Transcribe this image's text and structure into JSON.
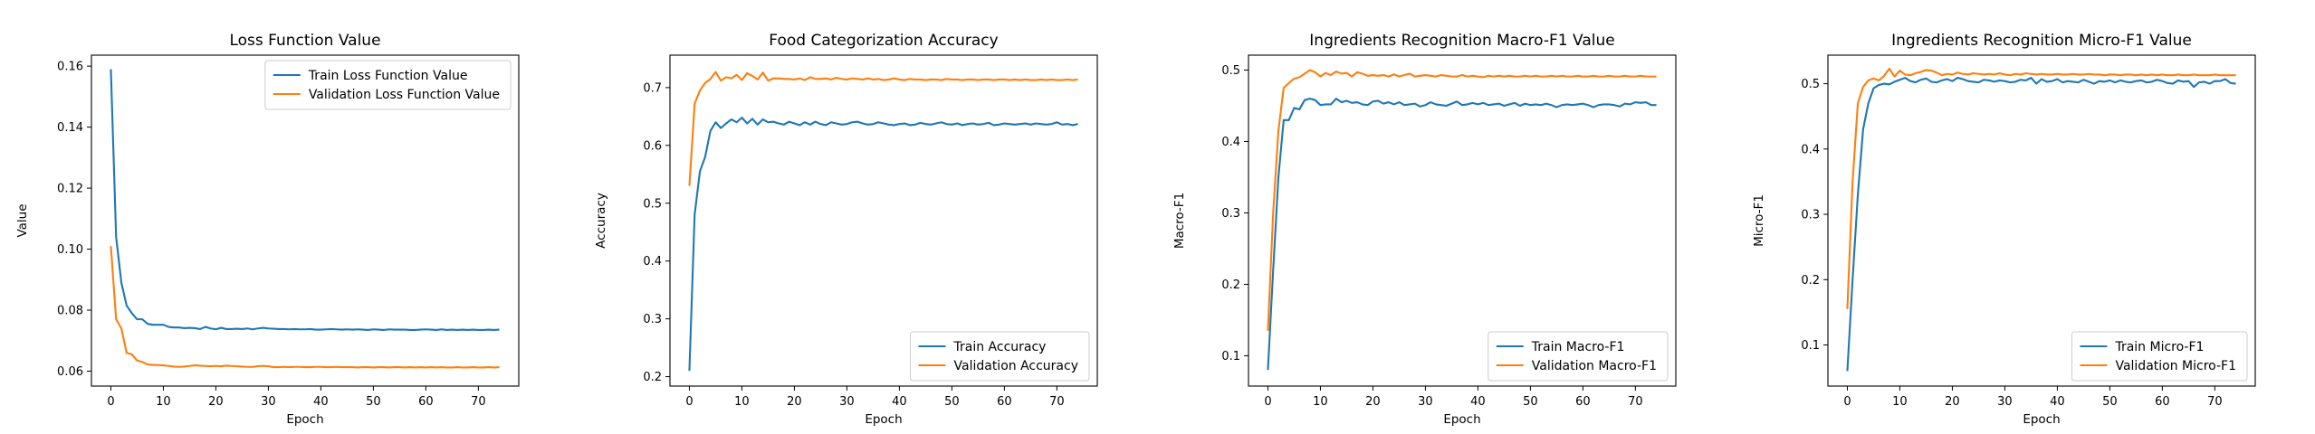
{
  "chart_data": [
    {
      "type": "line",
      "title": "Loss Function Value",
      "xlabel": "Epoch",
      "ylabel": "Value",
      "xlim": [
        -3.7,
        77.7
      ],
      "ylim": [
        0.0551,
        0.1636
      ],
      "xticks": [
        0,
        10,
        20,
        30,
        40,
        50,
        60,
        70
      ],
      "yticks": [
        0.06,
        0.08,
        0.1,
        0.12,
        0.14,
        0.16
      ],
      "ytick_labels": [
        "0.06",
        "0.08",
        "0.10",
        "0.12",
        "0.14",
        "0.16"
      ],
      "legend_loc": "upper right",
      "x": [
        0,
        1,
        2,
        3,
        4,
        5,
        6,
        7,
        8,
        9,
        10,
        11,
        12,
        13,
        14,
        15,
        16,
        17,
        18,
        19,
        20,
        21,
        22,
        23,
        24,
        25,
        26,
        27,
        28,
        29,
        30,
        31,
        32,
        33,
        34,
        35,
        36,
        37,
        38,
        39,
        40,
        41,
        42,
        43,
        44,
        45,
        46,
        47,
        48,
        49,
        50,
        51,
        52,
        53,
        54,
        55,
        56,
        57,
        58,
        59,
        60,
        61,
        62,
        63,
        64,
        65,
        66,
        67,
        68,
        69,
        70,
        71,
        72,
        73,
        74
      ],
      "series": [
        {
          "name": "Train Loss Function Value",
          "color": "#1f77b4",
          "values": [
            0.159,
            0.104,
            0.089,
            0.0815,
            0.079,
            0.077,
            0.077,
            0.0755,
            0.0752,
            0.0752,
            0.0752,
            0.0745,
            0.0743,
            0.0743,
            0.0741,
            0.0742,
            0.0741,
            0.0738,
            0.0745,
            0.074,
            0.0737,
            0.0742,
            0.0738,
            0.0738,
            0.0739,
            0.0738,
            0.074,
            0.0737,
            0.074,
            0.0742,
            0.074,
            0.0739,
            0.0738,
            0.0738,
            0.0737,
            0.0738,
            0.0737,
            0.0737,
            0.0738,
            0.0736,
            0.0736,
            0.0737,
            0.0738,
            0.0737,
            0.0736,
            0.0737,
            0.0736,
            0.0737,
            0.0736,
            0.0735,
            0.0737,
            0.0736,
            0.0735,
            0.0737,
            0.0736,
            0.0736,
            0.0736,
            0.0735,
            0.0735,
            0.0736,
            0.0737,
            0.0736,
            0.0735,
            0.0737,
            0.0735,
            0.0736,
            0.0735,
            0.0736,
            0.0735,
            0.0736,
            0.0735,
            0.0735,
            0.0736,
            0.0735,
            0.0736
          ]
        },
        {
          "name": "Validation Loss Function Value",
          "color": "#ff7f0e",
          "values": [
            0.101,
            0.077,
            0.074,
            0.066,
            0.0655,
            0.0635,
            0.063,
            0.0622,
            0.062,
            0.062,
            0.0619,
            0.0617,
            0.0615,
            0.0614,
            0.0615,
            0.0617,
            0.0619,
            0.0618,
            0.0617,
            0.0616,
            0.0617,
            0.0616,
            0.0618,
            0.0617,
            0.0616,
            0.0615,
            0.0614,
            0.0614,
            0.0616,
            0.0617,
            0.0616,
            0.0613,
            0.0613,
            0.0614,
            0.0613,
            0.0614,
            0.0614,
            0.0613,
            0.0613,
            0.0614,
            0.0614,
            0.0613,
            0.0613,
            0.0614,
            0.0613,
            0.0613,
            0.0613,
            0.0612,
            0.0613,
            0.0613,
            0.0612,
            0.0613,
            0.0613,
            0.0612,
            0.0613,
            0.0613,
            0.0612,
            0.0613,
            0.0612,
            0.0613,
            0.0612,
            0.0613,
            0.0612,
            0.0613,
            0.0612,
            0.0612,
            0.0613,
            0.0612,
            0.0612,
            0.0613,
            0.0612,
            0.0612,
            0.0613,
            0.0612,
            0.0613
          ]
        }
      ]
    },
    {
      "type": "line",
      "title": "Food Categorization Accuracy",
      "xlabel": "Epoch",
      "ylabel": "Accuracy",
      "xlim": [
        -3.7,
        77.7
      ],
      "ylim": [
        0.1837,
        0.7561
      ],
      "xticks": [
        0,
        10,
        20,
        30,
        40,
        50,
        60,
        70
      ],
      "yticks": [
        0.2,
        0.3,
        0.4,
        0.5,
        0.6,
        0.7
      ],
      "ytick_labels": [
        "0.2",
        "0.3",
        "0.4",
        "0.5",
        "0.6",
        "0.7"
      ],
      "legend_loc": "lower right",
      "x": [
        0,
        1,
        2,
        3,
        4,
        5,
        6,
        7,
        8,
        9,
        10,
        11,
        12,
        13,
        14,
        15,
        16,
        17,
        18,
        19,
        20,
        21,
        22,
        23,
        24,
        25,
        26,
        27,
        28,
        29,
        30,
        31,
        32,
        33,
        34,
        35,
        36,
        37,
        38,
        39,
        40,
        41,
        42,
        43,
        44,
        45,
        46,
        47,
        48,
        49,
        50,
        51,
        52,
        53,
        54,
        55,
        56,
        57,
        58,
        59,
        60,
        61,
        62,
        63,
        64,
        65,
        66,
        67,
        68,
        69,
        70,
        71,
        72,
        73,
        74
      ],
      "series": [
        {
          "name": "Train Accuracy",
          "color": "#1f77b4",
          "values": [
            0.21,
            0.48,
            0.555,
            0.58,
            0.625,
            0.64,
            0.63,
            0.638,
            0.645,
            0.64,
            0.648,
            0.638,
            0.646,
            0.636,
            0.645,
            0.64,
            0.641,
            0.638,
            0.636,
            0.641,
            0.638,
            0.635,
            0.64,
            0.636,
            0.641,
            0.637,
            0.635,
            0.64,
            0.638,
            0.636,
            0.637,
            0.64,
            0.641,
            0.638,
            0.636,
            0.637,
            0.64,
            0.638,
            0.636,
            0.635,
            0.637,
            0.638,
            0.635,
            0.636,
            0.639,
            0.637,
            0.636,
            0.638,
            0.64,
            0.637,
            0.636,
            0.638,
            0.635,
            0.637,
            0.638,
            0.636,
            0.637,
            0.639,
            0.635,
            0.636,
            0.638,
            0.637,
            0.636,
            0.637,
            0.638,
            0.636,
            0.638,
            0.637,
            0.636,
            0.637,
            0.64,
            0.636,
            0.637,
            0.635,
            0.637
          ]
        },
        {
          "name": "Validation Accuracy",
          "color": "#ff7f0e",
          "values": [
            0.53,
            0.672,
            0.695,
            0.708,
            0.715,
            0.727,
            0.712,
            0.718,
            0.716,
            0.722,
            0.713,
            0.725,
            0.72,
            0.714,
            0.726,
            0.712,
            0.716,
            0.716,
            0.715,
            0.715,
            0.714,
            0.716,
            0.713,
            0.718,
            0.715,
            0.715,
            0.716,
            0.714,
            0.717,
            0.715,
            0.714,
            0.716,
            0.715,
            0.714,
            0.716,
            0.714,
            0.715,
            0.713,
            0.714,
            0.716,
            0.714,
            0.713,
            0.715,
            0.714,
            0.714,
            0.713,
            0.714,
            0.714,
            0.713,
            0.715,
            0.714,
            0.714,
            0.713,
            0.714,
            0.714,
            0.713,
            0.714,
            0.714,
            0.713,
            0.714,
            0.714,
            0.713,
            0.714,
            0.713,
            0.714,
            0.713,
            0.713,
            0.714,
            0.713,
            0.714,
            0.713,
            0.713,
            0.714,
            0.713,
            0.714
          ]
        }
      ]
    },
    {
      "type": "line",
      "title": "Ingredients Recognition Macro-F1 Value",
      "xlabel": "Epoch",
      "ylabel": "Macro-F1",
      "xlim": [
        -3.7,
        77.7
      ],
      "ylim": [
        0.0575,
        0.5209
      ],
      "xticks": [
        0,
        10,
        20,
        30,
        40,
        50,
        60,
        70
      ],
      "yticks": [
        0.1,
        0.2,
        0.3,
        0.4,
        0.5
      ],
      "ytick_labels": [
        "0.1",
        "0.2",
        "0.3",
        "0.4",
        "0.5"
      ],
      "legend_loc": "lower right",
      "x": [
        0,
        1,
        2,
        3,
        4,
        5,
        6,
        7,
        8,
        9,
        10,
        11,
        12,
        13,
        14,
        15,
        16,
        17,
        18,
        19,
        20,
        21,
        22,
        23,
        24,
        25,
        26,
        27,
        28,
        29,
        30,
        31,
        32,
        33,
        34,
        35,
        36,
        37,
        38,
        39,
        40,
        41,
        42,
        43,
        44,
        45,
        46,
        47,
        48,
        49,
        50,
        51,
        52,
        53,
        54,
        55,
        56,
        57,
        58,
        59,
        60,
        61,
        62,
        63,
        64,
        65,
        66,
        67,
        68,
        69,
        70,
        71,
        72,
        73,
        74
      ],
      "series": [
        {
          "name": "Train Macro-F1",
          "color": "#1f77b4",
          "values": [
            0.08,
            0.22,
            0.35,
            0.43,
            0.43,
            0.447,
            0.445,
            0.458,
            0.46,
            0.458,
            0.451,
            0.452,
            0.452,
            0.46,
            0.455,
            0.457,
            0.454,
            0.455,
            0.452,
            0.451,
            0.456,
            0.457,
            0.453,
            0.455,
            0.452,
            0.455,
            0.451,
            0.452,
            0.453,
            0.449,
            0.451,
            0.455,
            0.452,
            0.451,
            0.45,
            0.453,
            0.456,
            0.451,
            0.452,
            0.454,
            0.452,
            0.454,
            0.451,
            0.452,
            0.453,
            0.45,
            0.452,
            0.454,
            0.45,
            0.453,
            0.451,
            0.452,
            0.451,
            0.453,
            0.451,
            0.448,
            0.451,
            0.452,
            0.451,
            0.452,
            0.453,
            0.451,
            0.448,
            0.451,
            0.452,
            0.452,
            0.451,
            0.449,
            0.453,
            0.452,
            0.455,
            0.454,
            0.455,
            0.451,
            0.451
          ]
        },
        {
          "name": "Validation Macro-F1",
          "color": "#ff7f0e",
          "values": [
            0.135,
            0.3,
            0.415,
            0.475,
            0.482,
            0.488,
            0.49,
            0.495,
            0.5,
            0.497,
            0.491,
            0.496,
            0.493,
            0.498,
            0.495,
            0.496,
            0.491,
            0.497,
            0.495,
            0.492,
            0.493,
            0.492,
            0.493,
            0.491,
            0.494,
            0.491,
            0.493,
            0.495,
            0.491,
            0.492,
            0.493,
            0.492,
            0.491,
            0.493,
            0.492,
            0.491,
            0.491,
            0.493,
            0.491,
            0.492,
            0.491,
            0.49,
            0.492,
            0.491,
            0.492,
            0.491,
            0.492,
            0.491,
            0.491,
            0.492,
            0.491,
            0.492,
            0.491,
            0.491,
            0.492,
            0.491,
            0.492,
            0.491,
            0.491,
            0.492,
            0.491,
            0.491,
            0.492,
            0.491,
            0.491,
            0.492,
            0.491,
            0.491,
            0.492,
            0.491,
            0.491,
            0.492,
            0.491,
            0.491,
            0.491
          ]
        }
      ]
    },
    {
      "type": "line",
      "title": "Ingredients Recognition Micro-F1 Value",
      "xlabel": "Epoch",
      "ylabel": "Micro-F1",
      "xlim": [
        -3.7,
        77.7
      ],
      "ylim": [
        0.037,
        0.5437
      ],
      "xticks": [
        0,
        10,
        20,
        30,
        40,
        50,
        60,
        70
      ],
      "yticks": [
        0.1,
        0.2,
        0.3,
        0.4,
        0.5
      ],
      "ytick_labels": [
        "0.1",
        "0.2",
        "0.3",
        "0.4",
        "0.5"
      ],
      "legend_loc": "lower right",
      "x": [
        0,
        1,
        2,
        3,
        4,
        5,
        6,
        7,
        8,
        9,
        10,
        11,
        12,
        13,
        14,
        15,
        16,
        17,
        18,
        19,
        20,
        21,
        22,
        23,
        24,
        25,
        26,
        27,
        28,
        29,
        30,
        31,
        32,
        33,
        34,
        35,
        36,
        37,
        38,
        39,
        40,
        41,
        42,
        43,
        44,
        45,
        46,
        47,
        48,
        49,
        50,
        51,
        52,
        53,
        54,
        55,
        56,
        57,
        58,
        59,
        60,
        61,
        62,
        63,
        64,
        65,
        66,
        67,
        68,
        69,
        70,
        71,
        72,
        73,
        74
      ],
      "series": [
        {
          "name": "Train Micro-F1",
          "color": "#1f77b4",
          "values": [
            0.06,
            0.2,
            0.33,
            0.43,
            0.47,
            0.493,
            0.498,
            0.5,
            0.499,
            0.503,
            0.506,
            0.509,
            0.504,
            0.502,
            0.506,
            0.508,
            0.503,
            0.502,
            0.505,
            0.507,
            0.504,
            0.509,
            0.507,
            0.504,
            0.503,
            0.502,
            0.506,
            0.505,
            0.503,
            0.505,
            0.504,
            0.502,
            0.503,
            0.506,
            0.505,
            0.509,
            0.5,
            0.507,
            0.503,
            0.504,
            0.507,
            0.502,
            0.504,
            0.503,
            0.502,
            0.506,
            0.503,
            0.5,
            0.504,
            0.503,
            0.505,
            0.502,
            0.505,
            0.503,
            0.502,
            0.504,
            0.505,
            0.502,
            0.503,
            0.506,
            0.504,
            0.501,
            0.5,
            0.505,
            0.503,
            0.504,
            0.495,
            0.502,
            0.503,
            0.5,
            0.504,
            0.504,
            0.507,
            0.501,
            0.5
          ]
        },
        {
          "name": "Validation Micro-F1",
          "color": "#ff7f0e",
          "values": [
            0.155,
            0.35,
            0.47,
            0.495,
            0.505,
            0.508,
            0.505,
            0.512,
            0.523,
            0.511,
            0.52,
            0.514,
            0.513,
            0.516,
            0.518,
            0.521,
            0.52,
            0.517,
            0.513,
            0.515,
            0.514,
            0.517,
            0.515,
            0.514,
            0.516,
            0.515,
            0.514,
            0.515,
            0.514,
            0.516,
            0.514,
            0.513,
            0.515,
            0.514,
            0.516,
            0.515,
            0.514,
            0.515,
            0.514,
            0.514,
            0.515,
            0.514,
            0.514,
            0.515,
            0.514,
            0.514,
            0.515,
            0.514,
            0.514,
            0.513,
            0.514,
            0.514,
            0.513,
            0.514,
            0.514,
            0.513,
            0.514,
            0.513,
            0.514,
            0.513,
            0.514,
            0.513,
            0.513,
            0.514,
            0.513,
            0.513,
            0.514,
            0.513,
            0.513,
            0.513,
            0.514,
            0.513,
            0.513,
            0.513,
            0.513
          ]
        }
      ]
    }
  ]
}
